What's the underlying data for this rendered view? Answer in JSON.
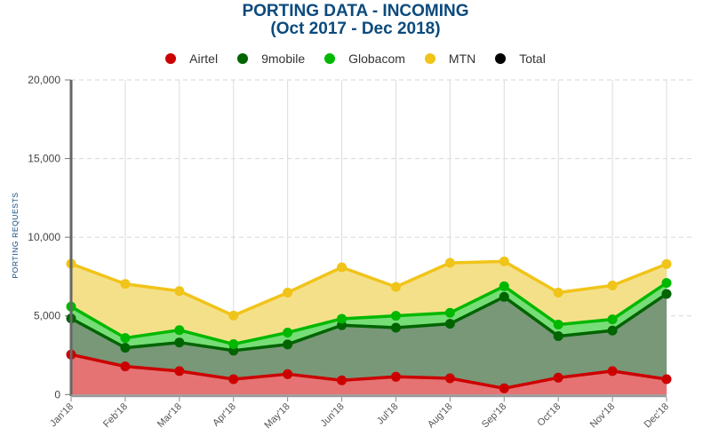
{
  "chart_data": {
    "type": "area",
    "stacked": true,
    "title": "PORTING DATA - INCOMING",
    "subtitle": "(Oct 2017 - Dec 2018)",
    "xlabel": "",
    "ylabel": "PORTING REQUESTS",
    "ylim": [
      0,
      20000
    ],
    "yticks": [
      0,
      5000,
      10000,
      15000,
      20000
    ],
    "ytick_labels": [
      "0",
      "5,000",
      "10,000",
      "15,000",
      "20,000"
    ],
    "grid": true,
    "legend_position": "top",
    "values_note": "Values estimated from pixel positions; no data labels shown. Approx. precision +/-100.",
    "categories": [
      "Jan'18",
      "Feb'18",
      "Mar'18",
      "Apr'18",
      "May'18",
      "Jun'18",
      "Jul'18",
      "Aug'18",
      "Sep'18",
      "Oct'18",
      "Nov'18",
      "Dec'18"
    ],
    "series": [
      {
        "name": "Airtel",
        "color": "#cc0000",
        "fill": "#e57373",
        "values": [
          2540,
          1790,
          1490,
          977,
          1298,
          903,
          1129,
          1034,
          395,
          1072,
          1490,
          977
        ]
      },
      {
        "name": "9mobile",
        "color": "#006400",
        "fill": "#789878",
        "values": [
          2296,
          1186,
          1818,
          1816,
          1890,
          3501,
          3124,
          3463,
          5814,
          2641,
          2575,
          5421
        ]
      },
      {
        "name": "Globacom",
        "color": "#00b800",
        "fill": "#77dd77",
        "values": [
          752,
          621,
          790,
          412,
          754,
          414,
          752,
          700,
          677,
          733,
          715,
          698
        ]
      },
      {
        "name": "MTN",
        "color": "#f0c419",
        "fill": "#f5e08a",
        "values": [
          2727,
          3433,
          2480,
          1813,
          2541,
          3272,
          1836,
          3175,
          1580,
          2037,
          2155,
          1201
        ]
      }
    ],
    "legend": [
      {
        "name": "Airtel",
        "color": "#cc0000"
      },
      {
        "name": "9mobile",
        "color": "#006400"
      },
      {
        "name": "Globacom",
        "color": "#00b800"
      },
      {
        "name": "MTN",
        "color": "#f0c419"
      },
      {
        "name": "Total",
        "color": "#000000"
      }
    ]
  }
}
